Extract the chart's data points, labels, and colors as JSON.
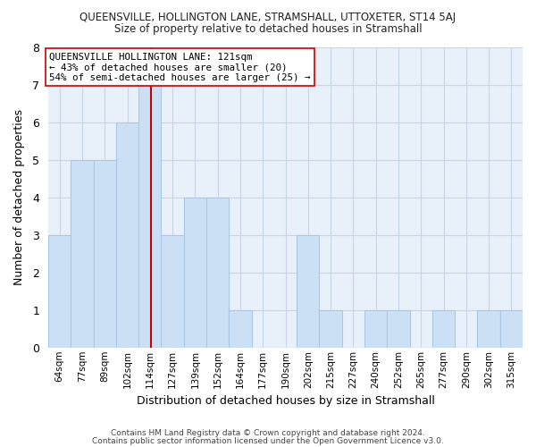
{
  "title_line1": "QUEENSVILLE, HOLLINGTON LANE, STRAMSHALL, UTTOXETER, ST14 5AJ",
  "title_line2": "Size of property relative to detached houses in Stramshall",
  "xlabel": "Distribution of detached houses by size in Stramshall",
  "ylabel": "Number of detached properties",
  "bar_labels": [
    "64sqm",
    "77sqm",
    "89sqm",
    "102sqm",
    "114sqm",
    "127sqm",
    "139sqm",
    "152sqm",
    "164sqm",
    "177sqm",
    "190sqm",
    "202sqm",
    "215sqm",
    "227sqm",
    "240sqm",
    "252sqm",
    "265sqm",
    "277sqm",
    "290sqm",
    "302sqm",
    "315sqm"
  ],
  "bar_values": [
    3,
    5,
    5,
    6,
    7,
    3,
    4,
    4,
    1,
    0,
    0,
    3,
    1,
    0,
    1,
    1,
    0,
    1,
    0,
    1,
    1
  ],
  "bar_color": "#cce0f5",
  "bar_edge_color": "#a8c8e8",
  "vline_color": "#cc0000",
  "annotation_title": "QUEENSVILLE HOLLINGTON LANE: 121sqm",
  "annotation_line2": "← 43% of detached houses are smaller (20)",
  "annotation_line3": "54% of semi-detached houses are larger (25) →",
  "annotation_box_color": "#ffffff",
  "annotation_box_edge": "#cc0000",
  "ylim": [
    0,
    8
  ],
  "yticks": [
    0,
    1,
    2,
    3,
    4,
    5,
    6,
    7,
    8
  ],
  "footer_line1": "Contains HM Land Registry data © Crown copyright and database right 2024.",
  "footer_line2": "Contains public sector information licensed under the Open Government Licence v3.0.",
  "background_color": "#ffffff",
  "plot_bg_color": "#e8f0fa",
  "grid_color": "#c8d4e8"
}
